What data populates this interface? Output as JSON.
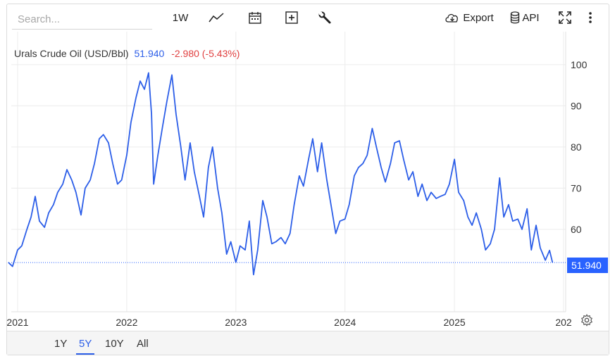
{
  "toolbar": {
    "search_placeholder": "Search...",
    "interval_label": "1W",
    "export_label": "Export",
    "api_label": "API",
    "icons": [
      "line-chart-icon",
      "calendar-icon",
      "add-compare-icon",
      "wrench-icon",
      "cloud-download-icon",
      "database-icon",
      "fullscreen-icon",
      "more-vertical-icon"
    ]
  },
  "legend": {
    "name": "Urals Crude Oil (USD/Bbl)",
    "value": "51.940",
    "change": "-2.980 (-5.43%)"
  },
  "price_tag": "51.940",
  "range_buttons": [
    "1Y",
    "5Y",
    "10Y",
    "All"
  ],
  "active_range": "5Y",
  "colors": {
    "line": "#2c5ee8",
    "accent": "#2962ff",
    "negative": "#e04040"
  },
  "chart_data": {
    "type": "line",
    "title": "Urals Crude Oil (USD/Bbl)",
    "xlabel": "",
    "ylabel": "",
    "x_range": [
      "2020-12",
      "2025-12"
    ],
    "ylim": [
      40,
      108
    ],
    "y_ticks": [
      60,
      70,
      80,
      90,
      100
    ],
    "x_ticks": [
      {
        "date": "2021-01-01",
        "label": "2021"
      },
      {
        "date": "2022-01-01",
        "label": "2022"
      },
      {
        "date": "2023-01-01",
        "label": "2023"
      },
      {
        "date": "2024-01-01",
        "label": "2024"
      },
      {
        "date": "2025-01-01",
        "label": "2025"
      },
      {
        "date": "2026-01-01",
        "label": "202"
      }
    ],
    "grid": true,
    "last_price_line": 51.94,
    "series": [
      {
        "name": "Urals Crude Oil",
        "points": [
          [
            "2020-12-01",
            52.0
          ],
          [
            "2020-12-15",
            51.0
          ],
          [
            "2021-01-01",
            55.0
          ],
          [
            "2021-01-15",
            56.0
          ],
          [
            "2021-02-01",
            60.0
          ],
          [
            "2021-02-15",
            63.0
          ],
          [
            "2021-03-01",
            68.0
          ],
          [
            "2021-03-15",
            62.0
          ],
          [
            "2021-04-01",
            60.5
          ],
          [
            "2021-04-15",
            64.0
          ],
          [
            "2021-05-01",
            66.0
          ],
          [
            "2021-05-15",
            69.0
          ],
          [
            "2021-06-01",
            71.0
          ],
          [
            "2021-06-15",
            74.5
          ],
          [
            "2021-07-01",
            72.0
          ],
          [
            "2021-07-15",
            69.0
          ],
          [
            "2021-08-01",
            63.5
          ],
          [
            "2021-08-15",
            70.0
          ],
          [
            "2021-09-01",
            72.0
          ],
          [
            "2021-09-15",
            76.0
          ],
          [
            "2021-10-01",
            82.0
          ],
          [
            "2021-10-15",
            83.0
          ],
          [
            "2021-11-01",
            81.0
          ],
          [
            "2021-11-15",
            76.0
          ],
          [
            "2021-12-01",
            71.0
          ],
          [
            "2021-12-15",
            72.0
          ],
          [
            "2022-01-01",
            78.0
          ],
          [
            "2022-01-15",
            86.0
          ],
          [
            "2022-02-01",
            92.0
          ],
          [
            "2022-02-15",
            96.0
          ],
          [
            "2022-03-01",
            94.0
          ],
          [
            "2022-03-15",
            98.0
          ],
          [
            "2022-03-25",
            88.0
          ],
          [
            "2022-04-01",
            71.0
          ],
          [
            "2022-04-15",
            78.0
          ],
          [
            "2022-05-01",
            85.0
          ],
          [
            "2022-05-15",
            91.0
          ],
          [
            "2022-06-01",
            97.5
          ],
          [
            "2022-06-15",
            88.0
          ],
          [
            "2022-07-01",
            80.0
          ],
          [
            "2022-07-15",
            72.0
          ],
          [
            "2022-08-01",
            81.0
          ],
          [
            "2022-08-15",
            74.0
          ],
          [
            "2022-09-01",
            68.0
          ],
          [
            "2022-09-15",
            63.0
          ],
          [
            "2022-10-01",
            75.0
          ],
          [
            "2022-10-15",
            80.0
          ],
          [
            "2022-11-01",
            70.0
          ],
          [
            "2022-11-15",
            64.0
          ],
          [
            "2022-12-01",
            54.0
          ],
          [
            "2022-12-15",
            57.0
          ],
          [
            "2023-01-01",
            52.0
          ],
          [
            "2023-01-15",
            56.0
          ],
          [
            "2023-02-01",
            55.0
          ],
          [
            "2023-02-15",
            62.0
          ],
          [
            "2023-03-01",
            49.0
          ],
          [
            "2023-03-15",
            55.0
          ],
          [
            "2023-04-01",
            67.0
          ],
          [
            "2023-04-15",
            63.0
          ],
          [
            "2023-05-01",
            56.5
          ],
          [
            "2023-05-15",
            57.0
          ],
          [
            "2023-06-01",
            58.0
          ],
          [
            "2023-06-15",
            56.5
          ],
          [
            "2023-07-01",
            59.0
          ],
          [
            "2023-07-15",
            66.0
          ],
          [
            "2023-08-01",
            73.0
          ],
          [
            "2023-08-15",
            70.5
          ],
          [
            "2023-09-01",
            77.0
          ],
          [
            "2023-09-15",
            82.0
          ],
          [
            "2023-10-01",
            74.0
          ],
          [
            "2023-10-15",
            81.0
          ],
          [
            "2023-11-01",
            72.0
          ],
          [
            "2023-11-15",
            66.0
          ],
          [
            "2023-12-01",
            59.0
          ],
          [
            "2023-12-15",
            62.0
          ],
          [
            "2024-01-01",
            62.5
          ],
          [
            "2024-01-15",
            66.0
          ],
          [
            "2024-02-01",
            73.0
          ],
          [
            "2024-02-15",
            75.0
          ],
          [
            "2024-03-01",
            76.0
          ],
          [
            "2024-03-15",
            78.0
          ],
          [
            "2024-04-01",
            84.5
          ],
          [
            "2024-04-15",
            80.0
          ],
          [
            "2024-05-01",
            75.0
          ],
          [
            "2024-05-15",
            71.5
          ],
          [
            "2024-06-01",
            76.0
          ],
          [
            "2024-06-15",
            81.0
          ],
          [
            "2024-07-01",
            81.5
          ],
          [
            "2024-07-15",
            77.0
          ],
          [
            "2024-08-01",
            72.0
          ],
          [
            "2024-08-15",
            74.0
          ],
          [
            "2024-09-01",
            68.0
          ],
          [
            "2024-09-15",
            71.0
          ],
          [
            "2024-10-01",
            67.0
          ],
          [
            "2024-10-15",
            69.0
          ],
          [
            "2024-11-01",
            67.5
          ],
          [
            "2024-11-15",
            68.0
          ],
          [
            "2024-12-01",
            68.5
          ],
          [
            "2024-12-15",
            71.0
          ],
          [
            "2025-01-01",
            77.0
          ],
          [
            "2025-01-15",
            69.0
          ],
          [
            "2025-02-01",
            67.0
          ],
          [
            "2025-02-15",
            63.0
          ],
          [
            "2025-03-01",
            61.0
          ],
          [
            "2025-03-15",
            64.0
          ],
          [
            "2025-04-01",
            60.0
          ],
          [
            "2025-04-15",
            55.0
          ],
          [
            "2025-05-01",
            56.5
          ],
          [
            "2025-05-15",
            60.0
          ],
          [
            "2025-06-01",
            72.5
          ],
          [
            "2025-06-15",
            63.0
          ],
          [
            "2025-07-01",
            66.0
          ],
          [
            "2025-07-15",
            62.0
          ],
          [
            "2025-08-01",
            62.5
          ],
          [
            "2025-08-15",
            60.0
          ],
          [
            "2025-09-01",
            65.0
          ],
          [
            "2025-09-15",
            55.0
          ],
          [
            "2025-10-01",
            61.0
          ],
          [
            "2025-10-15",
            55.5
          ],
          [
            "2025-11-01",
            52.5
          ],
          [
            "2025-11-15",
            54.9
          ],
          [
            "2025-11-25",
            51.94
          ]
        ]
      }
    ]
  }
}
